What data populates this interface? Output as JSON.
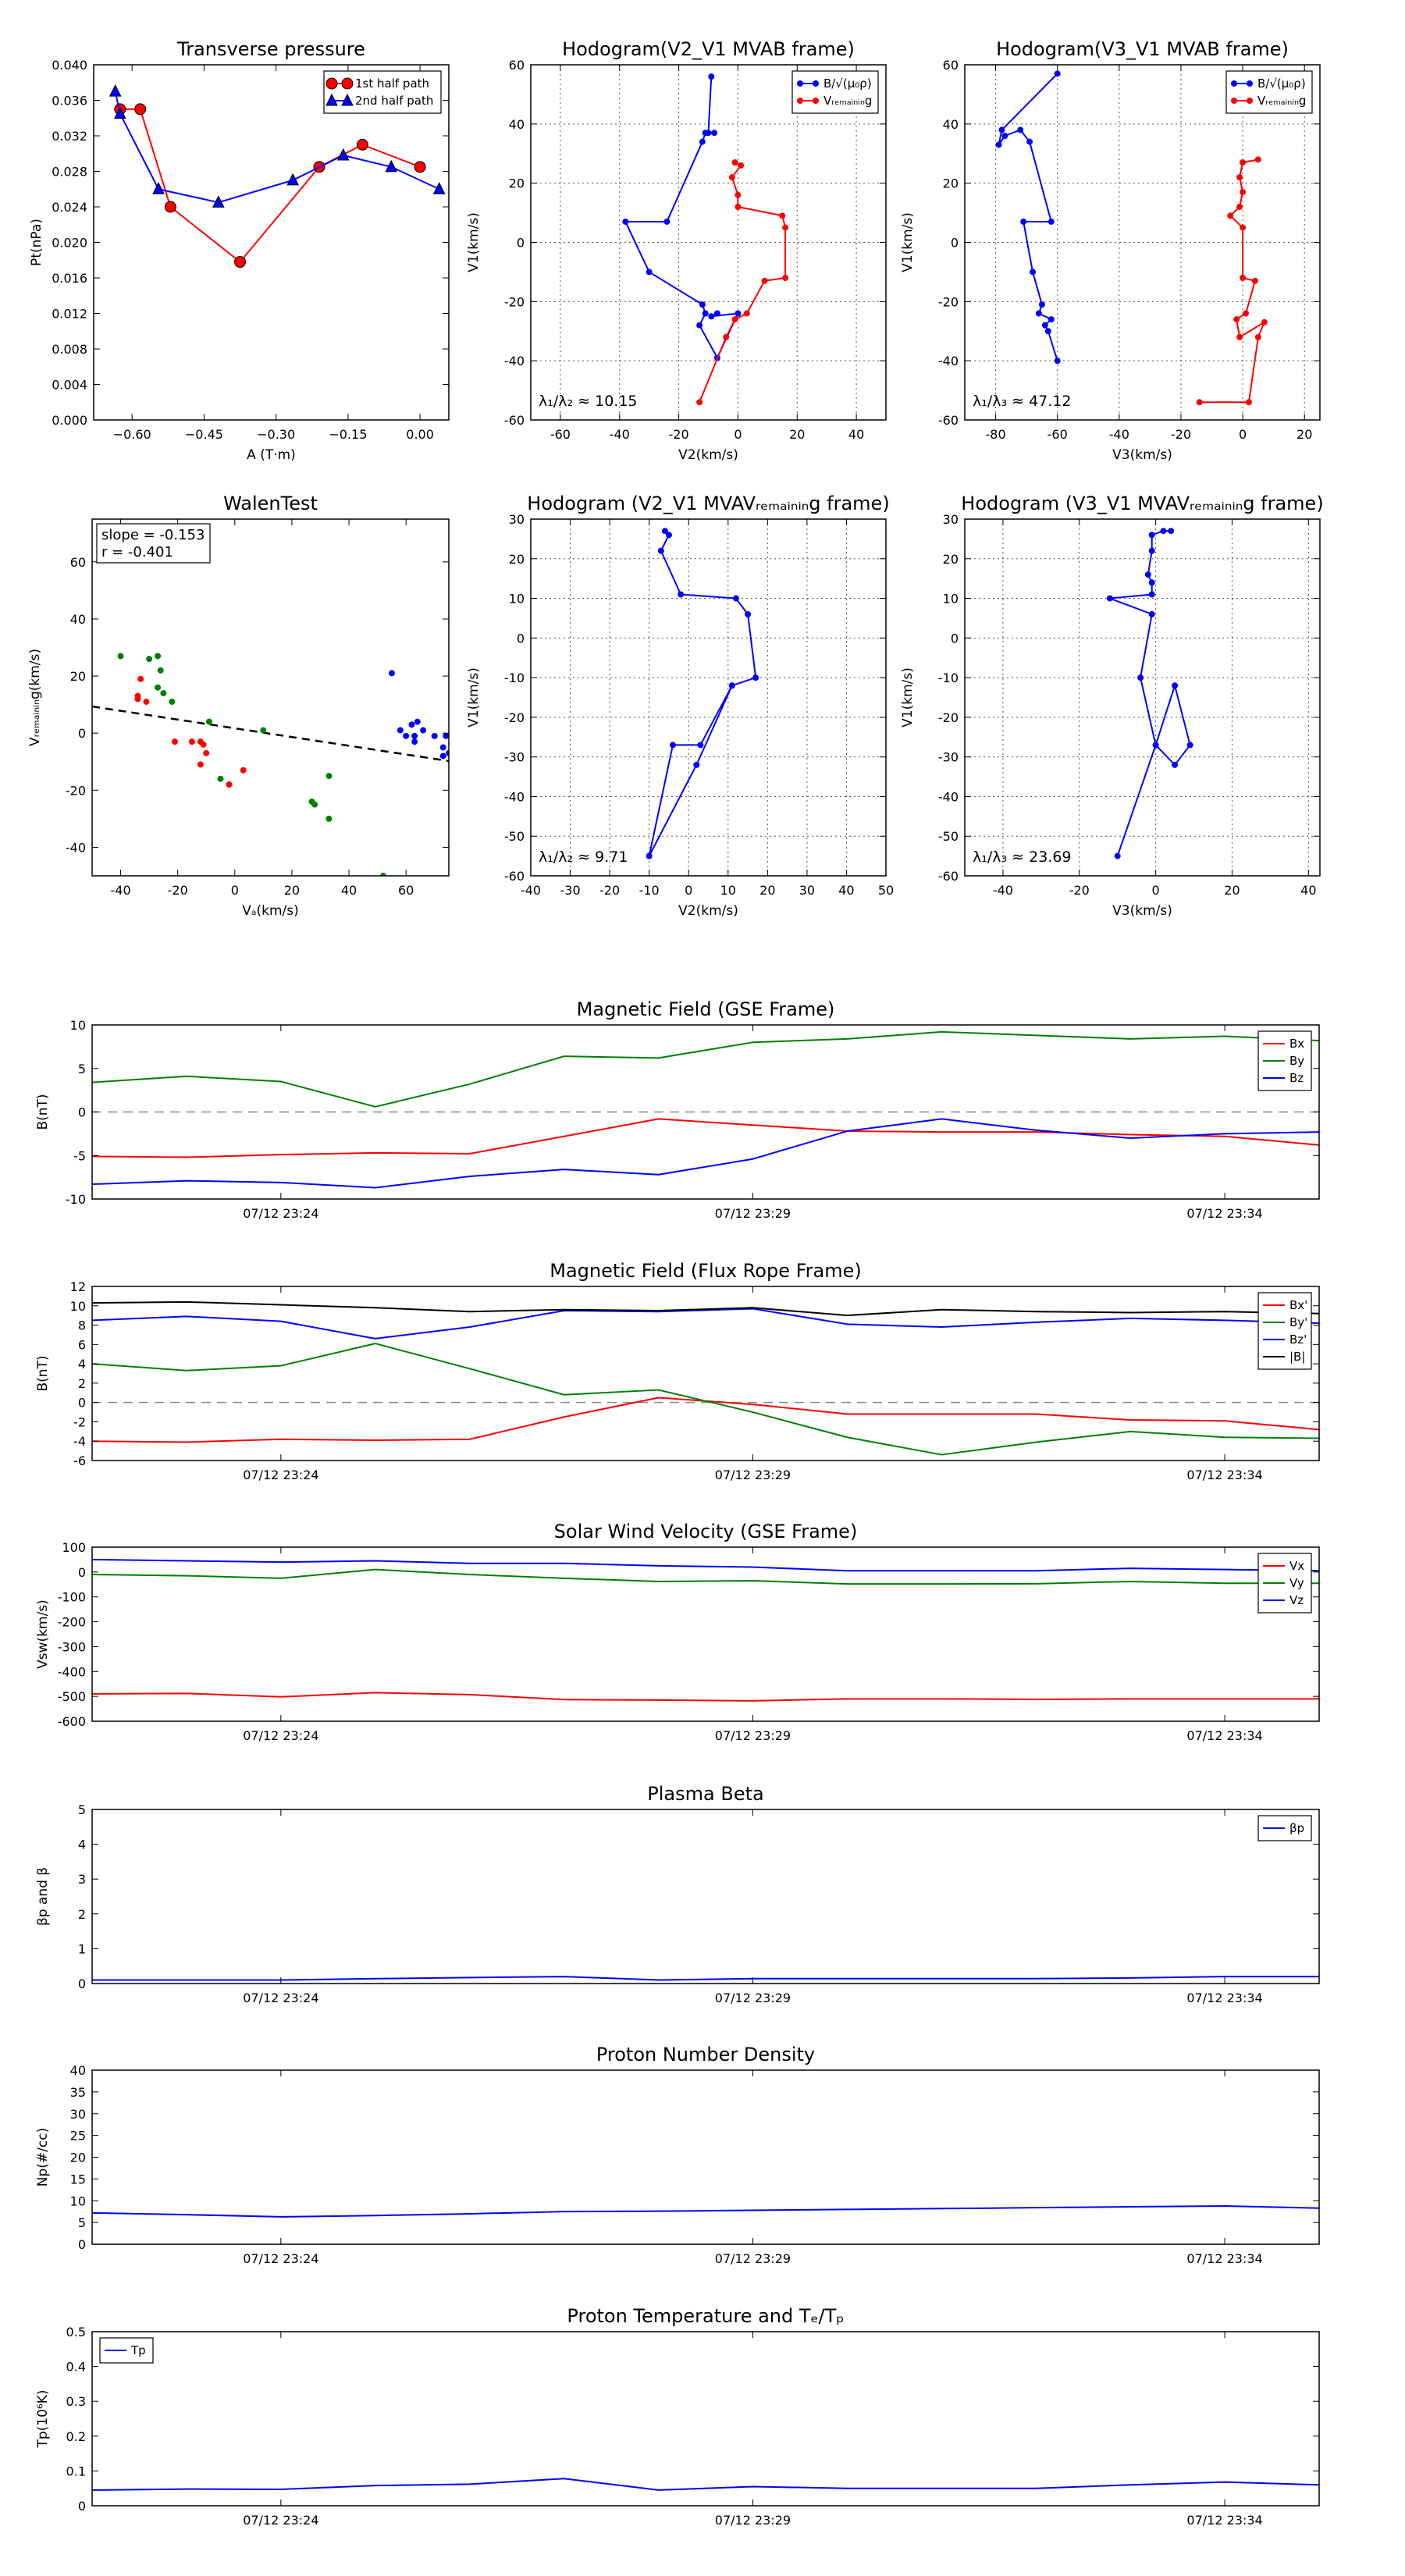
{
  "figure": {
    "background": "#ffffff"
  },
  "colors": {
    "red": "#ff0000",
    "green": "#008000",
    "blue": "#0000ff",
    "black": "#000000"
  },
  "chart_data": [
    {
      "id": "transverse-pressure",
      "type": "line",
      "title": "Transverse pressure",
      "xlabel": "A (T·m)",
      "ylabel": "Pt(nPa)",
      "xlim": [
        -0.68,
        0.06
      ],
      "ylim": [
        0,
        0.04
      ],
      "xticks": [
        -0.6,
        -0.45,
        -0.3,
        -0.15,
        0.0
      ],
      "xtick_labels": [
        "−0.60",
        "−0.45",
        "−0.30",
        "−0.15",
        "0.00"
      ],
      "yticks": [
        0,
        0.004,
        0.008,
        0.012,
        0.016,
        0.02,
        0.024,
        0.028,
        0.032,
        0.036,
        0.04
      ],
      "ytick_labels": [
        "0.000",
        "0.004",
        "0.008",
        "0.012",
        "0.016",
        "0.020",
        "0.024",
        "0.028",
        "0.032",
        "0.036",
        "0.040"
      ],
      "grid": false,
      "legend_loc": "top-right",
      "series": [
        {
          "name": "1st half path",
          "color": "red",
          "marker": "circle",
          "x": [
            -0.625,
            -0.583,
            -0.52,
            -0.375,
            -0.21,
            -0.12,
            0.0
          ],
          "y": [
            0.035,
            0.035,
            0.024,
            0.0178,
            0.0285,
            0.031,
            0.0285
          ]
        },
        {
          "name": "2nd half path",
          "color": "blue",
          "marker": "triangle",
          "x": [
            -0.635,
            -0.625,
            -0.545,
            -0.42,
            -0.265,
            -0.16,
            -0.06,
            0.04
          ],
          "y": [
            0.037,
            0.0345,
            0.026,
            0.0245,
            0.027,
            0.0298,
            0.0285,
            0.026
          ]
        }
      ]
    },
    {
      "id": "hodogram-v2-v1-mvab",
      "type": "line",
      "title": "Hodogram(V2_V1 MVAB frame)",
      "xlabel": "V2(km/s)",
      "ylabel": "V1(km/s)",
      "xlim": [
        -70,
        50
      ],
      "ylim": [
        -60,
        60
      ],
      "xticks": [
        -60,
        -40,
        -20,
        0,
        20,
        40
      ],
      "yticks": [
        -60,
        -40,
        -20,
        0,
        20,
        40,
        60
      ],
      "grid": true,
      "legend_loc": "top-right",
      "annotation": "λ₁/λ₂ ≈ 10.15",
      "series": [
        {
          "name": "B/√(μ₀ρ)",
          "color": "blue",
          "marker": "dot",
          "x": [
            -9,
            -10,
            -8,
            -11,
            -12,
            -24,
            -38,
            -30,
            -12,
            -11,
            -13,
            -7,
            0,
            -9,
            -7
          ],
          "y": [
            56,
            37,
            37,
            37,
            34,
            7,
            7,
            -10,
            -21,
            -24,
            -28,
            -39,
            -24,
            -25,
            -24
          ]
        },
        {
          "name": "Vᵣₑₘₐᵢₙᵢₙg",
          "color": "red",
          "marker": "dot",
          "x": [
            -1,
            1,
            -2,
            0,
            0,
            15,
            16,
            16,
            9,
            3,
            -1,
            -4,
            -13
          ],
          "y": [
            27,
            26,
            22,
            16,
            12,
            9,
            5,
            -12,
            -13,
            -24,
            -26,
            -32,
            -54
          ]
        }
      ]
    },
    {
      "id": "hodogram-v3-v1-mvab",
      "type": "line",
      "title": "Hodogram(V3_V1 MVAB frame)",
      "xlabel": "V3(km/s)",
      "ylabel": "V1(km/s)",
      "xlim": [
        -90,
        25
      ],
      "ylim": [
        -60,
        60
      ],
      "xticks": [
        -80,
        -60,
        -40,
        -20,
        0,
        20
      ],
      "yticks": [
        -60,
        -40,
        -20,
        0,
        20,
        40,
        60
      ],
      "grid": true,
      "legend_loc": "top-right",
      "annotation": "λ₁/λ₃ ≈ 47.12",
      "series": [
        {
          "name": "B/√(μ₀ρ)",
          "color": "blue",
          "marker": "dot",
          "x": [
            -60,
            -78,
            -79,
            -77,
            -72,
            -69,
            -62,
            -71,
            -68,
            -65,
            -66,
            -62,
            -64,
            -63,
            -60
          ],
          "y": [
            57,
            38,
            33,
            36,
            38,
            34,
            7,
            7,
            -10,
            -21,
            -24,
            -26,
            -28,
            -30,
            -40
          ]
        },
        {
          "name": "Vᵣₑₘₐᵢₙᵢₙg",
          "color": "red",
          "marker": "dot",
          "x": [
            5,
            0,
            -1,
            0,
            -1,
            -4,
            0,
            0,
            4,
            1,
            -2,
            -1,
            7,
            5,
            2,
            -14
          ],
          "y": [
            28,
            27,
            22,
            17,
            12,
            9,
            5,
            -12,
            -13,
            -24,
            -26,
            -32,
            -27,
            -32,
            -54,
            -54
          ]
        }
      ]
    },
    {
      "id": "walen-test",
      "type": "scatter",
      "title": "WalenTest",
      "xlabel": "Vₐ(km/s)",
      "ylabel": "Vᵣₑₘₐᵢₙᵢₙg(km/s)",
      "xlim": [
        -50,
        75
      ],
      "ylim": [
        -50,
        75
      ],
      "xticks": [
        -40,
        -20,
        0,
        20,
        40,
        60
      ],
      "yticks": [
        -40,
        -20,
        0,
        20,
        40,
        60
      ],
      "grid": false,
      "annotation_lines": [
        "slope = -0.153",
        "r = -0.401"
      ],
      "fit_line": {
        "slope": -0.153,
        "intercept": 1.7,
        "style": "dashed",
        "color": "black"
      },
      "series": [
        {
          "color": "green",
          "x": [
            -40,
            -30,
            -27,
            -26,
            -27,
            -25,
            -22,
            -9,
            10,
            -5,
            33,
            28,
            27,
            33,
            52
          ],
          "y": [
            27,
            26,
            27,
            22,
            16,
            14,
            11,
            4,
            1,
            -16,
            -15,
            -25,
            -24,
            -30,
            -50
          ]
        },
        {
          "color": "red",
          "x": [
            -33,
            -34,
            -34,
            -31,
            -15,
            -12,
            -11,
            -10,
            -21,
            -12,
            -2,
            3
          ],
          "y": [
            19,
            13,
            12,
            11,
            -3,
            -3,
            -4,
            -7,
            -3,
            -11,
            -18,
            -13
          ]
        },
        {
          "color": "blue",
          "x": [
            55,
            62,
            64,
            66,
            63,
            58,
            60,
            63,
            70,
            74,
            73,
            75,
            73
          ],
          "y": [
            21,
            3,
            4,
            1,
            -1,
            1,
            -1,
            -3,
            -1,
            -1,
            -5,
            -7,
            -8
          ]
        }
      ]
    },
    {
      "id": "hodogram-v2-v1-mvav",
      "type": "line",
      "title": "Hodogram (V2_V1 MVAVᵣₑₘₐᵢₙᵢₙg frame)",
      "xlabel": "V2(km/s)",
      "ylabel": "V1(km/s)",
      "xlim": [
        -40,
        50
      ],
      "ylim": [
        -60,
        30
      ],
      "xticks": [
        -40,
        -30,
        -20,
        -10,
        0,
        10,
        20,
        30,
        40,
        50
      ],
      "yticks": [
        -60,
        -50,
        -40,
        -30,
        -20,
        -10,
        0,
        10,
        20,
        30
      ],
      "grid": true,
      "annotation": "λ₁/λ₂ ≈ 9.71",
      "series": [
        {
          "color": "blue",
          "marker": "dot",
          "x": [
            -6,
            -5,
            -7,
            -2,
            12,
            15,
            17,
            11,
            3,
            -4,
            -10,
            2,
            11
          ],
          "y": [
            27,
            26,
            22,
            11,
            10,
            6,
            -10,
            -12,
            -27,
            -27,
            -55,
            -32,
            -12
          ]
        }
      ]
    },
    {
      "id": "hodogram-v3-v1-mvav",
      "type": "line",
      "title": "Hodogram (V3_V1 MVAVᵣₑₘₐᵢₙᵢₙg frame)",
      "xlabel": "V3(km/s)",
      "ylabel": "V1(km/s)",
      "xlim": [
        -50,
        43
      ],
      "ylim": [
        -60,
        30
      ],
      "xticks": [
        -40,
        -20,
        0,
        20,
        40
      ],
      "yticks": [
        -60,
        -50,
        -40,
        -30,
        -20,
        -10,
        0,
        10,
        20,
        30
      ],
      "grid": true,
      "annotation": "λ₁/λ₃ ≈ 23.69",
      "series": [
        {
          "color": "blue",
          "marker": "dot",
          "x": [
            4,
            2,
            -1,
            -1,
            -2,
            -1,
            -1,
            -12,
            -1,
            -4,
            0,
            5,
            9,
            5,
            0,
            -10
          ],
          "y": [
            27,
            27,
            26,
            22,
            16,
            14,
            11,
            10,
            6,
            -10,
            -27,
            -12,
            -27,
            -32,
            -27,
            -55
          ]
        }
      ]
    },
    {
      "id": "magnetic-field-gse",
      "type": "line",
      "title": "Magnetic Field (GSE Frame)",
      "ylabel": "B(nT)",
      "xlim": [
        0,
        13
      ],
      "ylim": [
        -10,
        10
      ],
      "xticks": [
        2,
        7,
        12
      ],
      "xtick_labels": [
        "07/12 23:24",
        "07/12 23:29",
        "07/12 23:34"
      ],
      "yticks": [
        -10,
        -5,
        0,
        5,
        10
      ],
      "zero_line": true,
      "legend_loc": "top-right",
      "x": [
        0,
        1,
        2,
        3,
        4,
        5,
        6,
        7,
        8,
        9,
        10,
        11,
        12,
        13
      ],
      "series": [
        {
          "name": "Bx",
          "color": "red",
          "values": [
            -5.1,
            -5.2,
            -4.9,
            -4.7,
            -4.8,
            -2.8,
            -0.8,
            -1.5,
            -2.2,
            -2.3,
            -2.3,
            -2.6,
            -2.8,
            -3.8
          ]
        },
        {
          "name": "By",
          "color": "green",
          "values": [
            3.4,
            4.1,
            3.5,
            0.6,
            3.2,
            6.4,
            6.2,
            8.0,
            8.4,
            9.2,
            8.8,
            8.4,
            8.7,
            8.2
          ]
        },
        {
          "name": "Bz",
          "color": "blue",
          "values": [
            -8.3,
            -7.9,
            -8.1,
            -8.7,
            -7.4,
            -6.6,
            -7.2,
            -5.4,
            -2.2,
            -0.8,
            -2.1,
            -3.0,
            -2.5,
            -2.3
          ]
        }
      ]
    },
    {
      "id": "magnetic-field-flux-rope",
      "type": "line",
      "title": "Magnetic Field (Flux Rope Frame)",
      "ylabel": "B(nT)",
      "xlim": [
        0,
        13
      ],
      "ylim": [
        -6,
        12
      ],
      "xticks": [
        2,
        7,
        12
      ],
      "xtick_labels": [
        "07/12 23:24",
        "07/12 23:29",
        "07/12 23:34"
      ],
      "yticks": [
        -6,
        -4,
        -2,
        0,
        2,
        4,
        6,
        8,
        10,
        12
      ],
      "zero_line": true,
      "legend_loc": "top-right",
      "x": [
        0,
        1,
        2,
        3,
        4,
        5,
        6,
        7,
        8,
        9,
        10,
        11,
        12,
        13
      ],
      "series": [
        {
          "name": "Bx'",
          "color": "red",
          "values": [
            -4.0,
            -4.1,
            -3.8,
            -3.9,
            -3.8,
            -1.5,
            0.5,
            -0.2,
            -1.2,
            -1.2,
            -1.2,
            -1.8,
            -1.9,
            -2.8
          ]
        },
        {
          "name": "By'",
          "color": "green",
          "values": [
            4.0,
            3.3,
            3.8,
            6.1,
            3.5,
            0.8,
            1.3,
            -1.0,
            -3.6,
            -5.4,
            -4.1,
            -3.0,
            -3.6,
            -3.7
          ]
        },
        {
          "name": "Bz'",
          "color": "blue",
          "values": [
            8.5,
            8.9,
            8.4,
            6.6,
            7.8,
            9.5,
            9.4,
            9.7,
            8.1,
            7.8,
            8.3,
            8.7,
            8.5,
            8.2
          ]
        },
        {
          "name": "|B|",
          "color": "black",
          "values": [
            10.3,
            10.4,
            10.1,
            9.8,
            9.4,
            9.6,
            9.5,
            9.8,
            9.0,
            9.6,
            9.4,
            9.3,
            9.4,
            9.2
          ]
        }
      ]
    },
    {
      "id": "solar-wind-velocity",
      "type": "line",
      "title": "Solar Wind Velocity (GSE Frame)",
      "ylabel": "Vsw(km/s)",
      "xlim": [
        0,
        13
      ],
      "ylim": [
        -600,
        100
      ],
      "xticks": [
        2,
        7,
        12
      ],
      "xtick_labels": [
        "07/12 23:24",
        "07/12 23:29",
        "07/12 23:34"
      ],
      "yticks": [
        -600,
        -500,
        -400,
        -300,
        -200,
        -100,
        0,
        100
      ],
      "legend_loc": "top-right",
      "x": [
        0,
        1,
        2,
        3,
        4,
        5,
        6,
        7,
        8,
        9,
        10,
        11,
        12,
        13
      ],
      "series": [
        {
          "name": "Vx",
          "color": "red",
          "values": [
            -490,
            -488,
            -502,
            -485,
            -493,
            -513,
            -515,
            -518,
            -510,
            -510,
            -512,
            -510,
            -510,
            -510
          ]
        },
        {
          "name": "Vy",
          "color": "green",
          "values": [
            -10,
            -15,
            -25,
            10,
            -10,
            -25,
            -38,
            -35,
            -48,
            -48,
            -47,
            -38,
            -45,
            -45
          ]
        },
        {
          "name": "Vz",
          "color": "blue",
          "values": [
            50,
            45,
            40,
            45,
            35,
            35,
            25,
            20,
            5,
            5,
            5,
            15,
            10,
            5
          ]
        }
      ]
    },
    {
      "id": "plasma-beta",
      "type": "line",
      "title": "Plasma Beta",
      "ylabel": "βp and β",
      "xlim": [
        0,
        13
      ],
      "ylim": [
        0,
        5
      ],
      "xticks": [
        2,
        7,
        12
      ],
      "xtick_labels": [
        "07/12 23:24",
        "07/12 23:29",
        "07/12 23:34"
      ],
      "yticks": [
        0,
        1,
        2,
        3,
        4,
        5
      ],
      "legend_loc": "top-right",
      "x": [
        0,
        1,
        2,
        3,
        4,
        5,
        6,
        7,
        8,
        9,
        10,
        11,
        12,
        13
      ],
      "series": [
        {
          "name": "βp",
          "color": "blue",
          "values": [
            0.1,
            0.1,
            0.1,
            0.14,
            0.17,
            0.2,
            0.1,
            0.14,
            0.14,
            0.14,
            0.14,
            0.16,
            0.2,
            0.2
          ]
        }
      ]
    },
    {
      "id": "proton-number-density",
      "type": "line",
      "title": "Proton Number Density",
      "ylabel": "Np(#/cc)",
      "xlim": [
        0,
        13
      ],
      "ylim": [
        0,
        40
      ],
      "xticks": [
        2,
        7,
        12
      ],
      "xtick_labels": [
        "07/12 23:24",
        "07/12 23:29",
        "07/12 23:34"
      ],
      "yticks": [
        0,
        5,
        10,
        15,
        20,
        25,
        30,
        35,
        40
      ],
      "x": [
        0,
        1,
        2,
        3,
        4,
        5,
        6,
        7,
        8,
        9,
        10,
        11,
        12,
        13
      ],
      "series": [
        {
          "color": "blue",
          "values": [
            7.2,
            6.8,
            6.3,
            6.6,
            7.0,
            7.5,
            7.6,
            7.8,
            8.0,
            8.2,
            8.4,
            8.6,
            8.8,
            8.3
          ]
        }
      ]
    },
    {
      "id": "proton-temperature",
      "type": "line",
      "title": "Proton Temperature and Tₑ/Tₚ",
      "ylabel": "Tp(10⁶K)",
      "xlim": [
        0,
        13
      ],
      "ylim": [
        0,
        0.5
      ],
      "xticks": [
        2,
        7,
        12
      ],
      "xtick_labels": [
        "07/12 23:24",
        "07/12 23:29",
        "07/12 23:34"
      ],
      "yticks": [
        0,
        0.1,
        0.2,
        0.3,
        0.4,
        0.5
      ],
      "legend_loc": "top-left",
      "x": [
        0,
        1,
        2,
        3,
        4,
        5,
        6,
        7,
        8,
        9,
        10,
        11,
        12,
        13
      ],
      "series": [
        {
          "name": "Tp",
          "color": "blue",
          "values": [
            0.045,
            0.048,
            0.047,
            0.058,
            0.062,
            0.078,
            0.045,
            0.055,
            0.05,
            0.05,
            0.05,
            0.06,
            0.068,
            0.06
          ]
        }
      ]
    }
  ]
}
